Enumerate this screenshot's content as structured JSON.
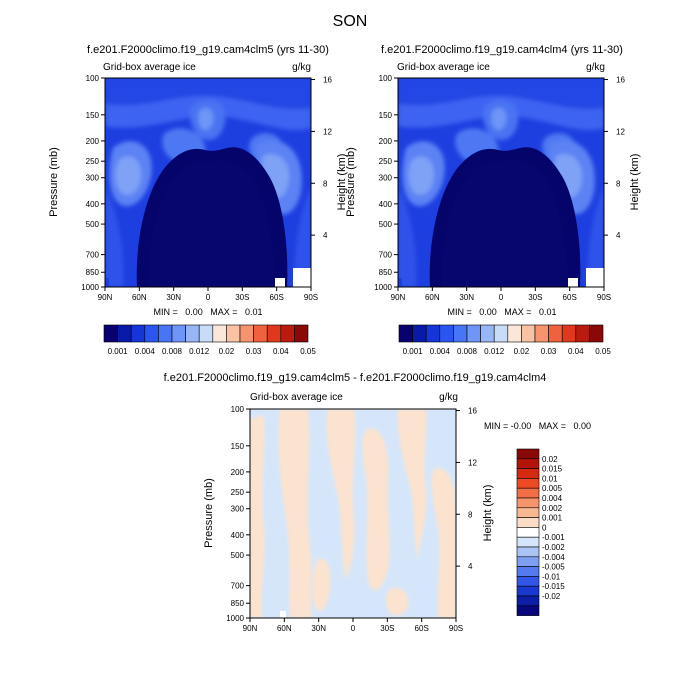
{
  "figure_title": "SON",
  "chart_data": [
    {
      "id": "panel1",
      "type": "heatmap",
      "title": "f.e201.F2000climo.f19_g19.cam4clm5 (yrs 11-30)",
      "left_subtitle": "Grid-box average ice",
      "right_subtitle": "g/kg",
      "ylabel": "Pressure (mb)",
      "ylabel_right": "Height (km)",
      "x_ticks": [
        "90N",
        "60N",
        "30N",
        "0",
        "30S",
        "60S",
        "90S"
      ],
      "y_ticks": [
        "100",
        "150",
        "200",
        "250",
        "300",
        "400",
        "500",
        "700",
        "850",
        "1000"
      ],
      "y_ticks_right": [
        "16",
        "12",
        "8",
        "4"
      ],
      "stats": "MIN =   0.00   MAX =   0.01",
      "colorbar": {
        "orientation": "horizontal",
        "colors": [
          "#08006e",
          "#0a1aa8",
          "#1535d8",
          "#2a55f0",
          "#4875f5",
          "#6e95f7",
          "#98b6f5",
          "#c8dcf8",
          "#fbe6da",
          "#f8c2a4",
          "#f6946e",
          "#f0623e",
          "#e0381c",
          "#bb1a0e",
          "#8a0808"
        ],
        "labels": [
          "0.001",
          "0.004",
          "0.008",
          "0.012",
          "0.02",
          "0.03",
          "0.04",
          "0.05"
        ],
        "levels": [
          0.001,
          0.002,
          0.004,
          0.006,
          0.008,
          0.01,
          0.012,
          0.015,
          0.02,
          0.025,
          0.03,
          0.035,
          0.04,
          0.045,
          0.05
        ]
      },
      "value_range": [
        0.0,
        0.01
      ]
    },
    {
      "id": "panel2",
      "type": "heatmap",
      "title": "f.e201.F2000climo.f19_g19.cam4clm4 (yrs 11-30)",
      "left_subtitle": "Grid-box average ice",
      "right_subtitle": "g/kg",
      "ylabel": "Pressure (mb)",
      "ylabel_right": "Height (km)",
      "x_ticks": [
        "90N",
        "60N",
        "30N",
        "0",
        "30S",
        "60S",
        "90S"
      ],
      "y_ticks": [
        "100",
        "150",
        "200",
        "250",
        "300",
        "400",
        "500",
        "700",
        "850",
        "1000"
      ],
      "y_ticks_right": [
        "16",
        "12",
        "8",
        "4"
      ],
      "stats": "MIN =   0.00   MAX =   0.01",
      "colorbar": {
        "orientation": "horizontal",
        "colors": [
          "#08006e",
          "#0a1aa8",
          "#1535d8",
          "#2a55f0",
          "#4875f5",
          "#6e95f7",
          "#98b6f5",
          "#c8dcf8",
          "#fbe6da",
          "#f8c2a4",
          "#f6946e",
          "#f0623e",
          "#e0381c",
          "#bb1a0e",
          "#8a0808"
        ],
        "labels": [
          "0.001",
          "0.004",
          "0.008",
          "0.012",
          "0.02",
          "0.03",
          "0.04",
          "0.05"
        ],
        "levels": [
          0.001,
          0.002,
          0.004,
          0.006,
          0.008,
          0.01,
          0.012,
          0.015,
          0.02,
          0.025,
          0.03,
          0.035,
          0.04,
          0.045,
          0.05
        ]
      },
      "value_range": [
        0.0,
        0.01
      ]
    },
    {
      "id": "panel3",
      "type": "heatmap",
      "title": "f.e201.F2000climo.f19_g19.cam4clm5 - f.e201.F2000climo.f19_g19.cam4clm4",
      "left_subtitle": "Grid-box average ice",
      "right_subtitle": "g/kg",
      "ylabel": "Pressure (mb)",
      "ylabel_right": "Height (km)",
      "x_ticks": [
        "90N",
        "60N",
        "30N",
        "0",
        "30S",
        "60S",
        "90S"
      ],
      "y_ticks": [
        "100",
        "150",
        "200",
        "250",
        "300",
        "400",
        "500",
        "700",
        "850",
        "1000"
      ],
      "y_ticks_right": [
        "16",
        "12",
        "8",
        "4"
      ],
      "stats": "MIN = -0.00   MAX =   0.00",
      "colorbar": {
        "orientation": "vertical",
        "colors": [
          "#8a0808",
          "#b41408",
          "#d62a10",
          "#ec4a22",
          "#f26e46",
          "#f6946e",
          "#f8b892",
          "#fbdcc6",
          "#ffffff",
          "#d6e6fa",
          "#a9c4f5",
          "#7e9ff2",
          "#5579ef",
          "#3256e8",
          "#1a37d0",
          "#0c1da6",
          "#07067a"
        ],
        "labels": [
          "0.02",
          "0.015",
          "0.01",
          "0.005",
          "0.004",
          "0.002",
          "0.001",
          "0",
          "-0.001",
          "-0.002",
          "-0.004",
          "-0.005",
          "-0.01",
          "-0.015",
          "-0.02"
        ],
        "levels": [
          0.02,
          0.015,
          0.01,
          0.005,
          0.004,
          0.002,
          0.001,
          0,
          -0.001,
          -0.002,
          -0.004,
          -0.005,
          -0.01,
          -0.015,
          -0.02
        ]
      },
      "value_range": [
        -0.001,
        0.001
      ]
    }
  ]
}
